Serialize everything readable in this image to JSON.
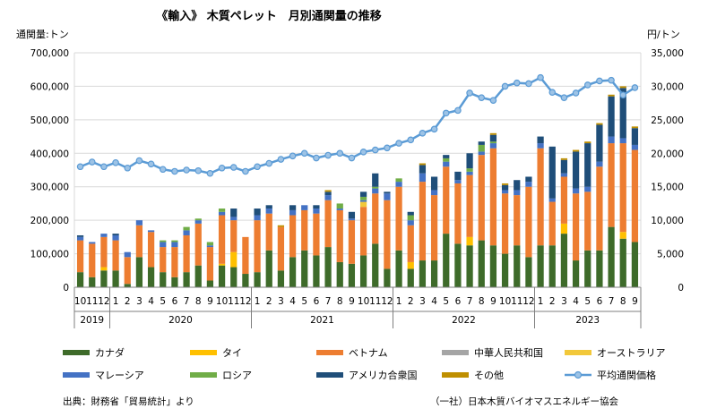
{
  "chart_data": {
    "type": "bar",
    "title": "《輸入》 木質ペレット　月別通関量の推移",
    "ylabel_left": "通関量:トン",
    "ylabel_right": "円/トン",
    "ylim_left": [
      0,
      700000
    ],
    "ylim_right": [
      0,
      35000
    ],
    "yticks_left": [
      "0",
      "100,000",
      "200,000",
      "300,000",
      "400,000",
      "500,000",
      "600,000",
      "700,000"
    ],
    "yticks_right": [
      "0",
      "5,000",
      "10,000",
      "15,000",
      "20,000",
      "25,000",
      "30,000",
      "35,000"
    ],
    "grid": true,
    "legend_position": "bottom",
    "categories": [
      "10",
      "11",
      "12",
      "1",
      "2",
      "3",
      "4",
      "5",
      "6",
      "7",
      "8",
      "9",
      "10",
      "11",
      "12",
      "1",
      "2",
      "3",
      "4",
      "5",
      "6",
      "7",
      "8",
      "9",
      "10",
      "11",
      "12",
      "1",
      "2",
      "3",
      "4",
      "5",
      "6",
      "7",
      "8",
      "9",
      "10",
      "11",
      "12",
      "1",
      "2",
      "3",
      "4",
      "5",
      "6",
      "7",
      "8",
      "9"
    ],
    "years": [
      {
        "label": "2019",
        "start": 0,
        "count": 3
      },
      {
        "label": "2020",
        "start": 3,
        "count": 12
      },
      {
        "label": "2021",
        "start": 15,
        "count": 12
      },
      {
        "label": "2022",
        "start": 27,
        "count": 12
      },
      {
        "label": "2023",
        "start": 39,
        "count": 9
      }
    ],
    "series": [
      {
        "name": "カナダ",
        "color": "#3e6b2a",
        "values": [
          45000,
          30000,
          50000,
          50000,
          10000,
          90000,
          60000,
          45000,
          30000,
          45000,
          65000,
          20000,
          65000,
          60000,
          40000,
          45000,
          110000,
          50000,
          90000,
          110000,
          95000,
          120000,
          75000,
          70000,
          95000,
          130000,
          55000,
          110000,
          55000,
          80000,
          80000,
          160000,
          130000,
          125000,
          140000,
          125000,
          100000,
          125000,
          90000,
          125000,
          125000,
          160000,
          80000,
          110000,
          110000,
          180000,
          145000,
          135000
        ]
      },
      {
        "name": "タイ",
        "color": "#ffc000",
        "values": [
          0,
          0,
          10000,
          0,
          0,
          0,
          0,
          0,
          0,
          0,
          0,
          0,
          5000,
          45000,
          0,
          0,
          0,
          0,
          0,
          0,
          0,
          0,
          0,
          0,
          0,
          0,
          0,
          0,
          20000,
          0,
          0,
          0,
          0,
          25000,
          0,
          0,
          0,
          0,
          0,
          0,
          0,
          30000,
          0,
          0,
          0,
          0,
          20000,
          0
        ]
      },
      {
        "name": "ベトナム",
        "color": "#ed7d31",
        "values": [
          95000,
          100000,
          90000,
          90000,
          80000,
          95000,
          105000,
          75000,
          90000,
          110000,
          125000,
          100000,
          145000,
          95000,
          110000,
          155000,
          110000,
          130000,
          125000,
          120000,
          125000,
          140000,
          155000,
          130000,
          145000,
          150000,
          205000,
          190000,
          110000,
          235000,
          195000,
          200000,
          180000,
          185000,
          255000,
          290000,
          180000,
          150000,
          210000,
          290000,
          130000,
          140000,
          200000,
          175000,
          250000,
          250000,
          265000,
          275000
        ]
      },
      {
        "name": "中華人民共和国",
        "color": "#a5a5a5",
        "values": [
          0,
          0,
          0,
          0,
          0,
          0,
          0,
          0,
          0,
          0,
          0,
          0,
          0,
          0,
          0,
          0,
          0,
          0,
          0,
          0,
          0,
          0,
          0,
          0,
          0,
          0,
          0,
          0,
          0,
          0,
          0,
          0,
          0,
          0,
          0,
          0,
          0,
          0,
          0,
          0,
          0,
          0,
          0,
          0,
          0,
          0,
          0,
          0
        ]
      },
      {
        "name": "オーストラリア",
        "color": "#f2c83a",
        "values": [
          0,
          0,
          0,
          0,
          0,
          0,
          0,
          0,
          0,
          0,
          0,
          0,
          0,
          0,
          0,
          0,
          0,
          0,
          0,
          0,
          0,
          0,
          0,
          0,
          15000,
          0,
          0,
          0,
          0,
          0,
          0,
          0,
          0,
          0,
          0,
          0,
          0,
          0,
          0,
          0,
          0,
          0,
          0,
          0,
          0,
          0,
          0,
          0
        ]
      },
      {
        "name": "マレーシア",
        "color": "#4472c4",
        "values": [
          10000,
          5000,
          10000,
          15000,
          15000,
          15000,
          5000,
          15000,
          15000,
          15000,
          10000,
          5000,
          10000,
          10000,
          0,
          15000,
          15000,
          0,
          15000,
          15000,
          15000,
          15000,
          5000,
          5000,
          5000,
          15000,
          20000,
          15000,
          15000,
          25000,
          15000,
          15000,
          10000,
          10000,
          10000,
          15000,
          10000,
          15000,
          15000,
          15000,
          10000,
          10000,
          15000,
          15000,
          15000,
          20000,
          15000,
          15000
        ]
      },
      {
        "name": "ロシア",
        "color": "#70ad47",
        "values": [
          0,
          0,
          0,
          0,
          0,
          0,
          0,
          5000,
          5000,
          10000,
          5000,
          10000,
          10000,
          0,
          0,
          0,
          0,
          0,
          0,
          0,
          0,
          0,
          15000,
          0,
          10000,
          5000,
          0,
          10000,
          15000,
          0,
          0,
          10000,
          0,
          10000,
          20000,
          5000,
          0,
          0,
          0,
          0,
          0,
          0,
          0,
          0,
          0,
          0,
          0,
          0
        ]
      },
      {
        "name": "アメリカ合衆国",
        "color": "#1f4e79",
        "values": [
          5000,
          0,
          0,
          5000,
          0,
          0,
          0,
          0,
          0,
          0,
          0,
          0,
          0,
          25000,
          0,
          20000,
          10000,
          0,
          15000,
          0,
          10000,
          10000,
          0,
          20000,
          15000,
          40000,
          5000,
          0,
          10000,
          25000,
          40000,
          10000,
          25000,
          45000,
          10000,
          20000,
          15000,
          30000,
          15000,
          20000,
          155000,
          40000,
          110000,
          130000,
          110000,
          120000,
          150000,
          50000
        ]
      },
      {
        "name": "その他",
        "color": "#bf8f00",
        "values": [
          0,
          0,
          0,
          0,
          0,
          0,
          0,
          0,
          0,
          0,
          0,
          0,
          0,
          0,
          0,
          0,
          0,
          5000,
          0,
          0,
          0,
          5000,
          0,
          0,
          0,
          0,
          0,
          0,
          0,
          5000,
          0,
          0,
          0,
          0,
          0,
          5000,
          5000,
          0,
          0,
          0,
          0,
          5000,
          5000,
          5000,
          5000,
          5000,
          5000,
          5000
        ]
      }
    ],
    "line_series": {
      "name": "平均通関価格",
      "color": "#5b9bd5",
      "marker_fill": "#9dc3e6",
      "values": [
        18000,
        18700,
        18000,
        18600,
        17800,
        18900,
        18400,
        17600,
        17300,
        17500,
        17400,
        17000,
        17800,
        17900,
        17300,
        18000,
        18500,
        19100,
        19600,
        20000,
        19300,
        19700,
        20000,
        19300,
        20200,
        20500,
        20800,
        21500,
        22000,
        23000,
        23600,
        26000,
        26400,
        29000,
        28300,
        27900,
        30000,
        30500,
        30400,
        31300,
        29100,
        28300,
        29000,
        30200,
        30800,
        30900,
        28700,
        29800
      ]
    },
    "source_note": "出典：財務省「貿易統計」より",
    "org_note": "（一社）日本木質バイオマスエネルギー協会"
  }
}
